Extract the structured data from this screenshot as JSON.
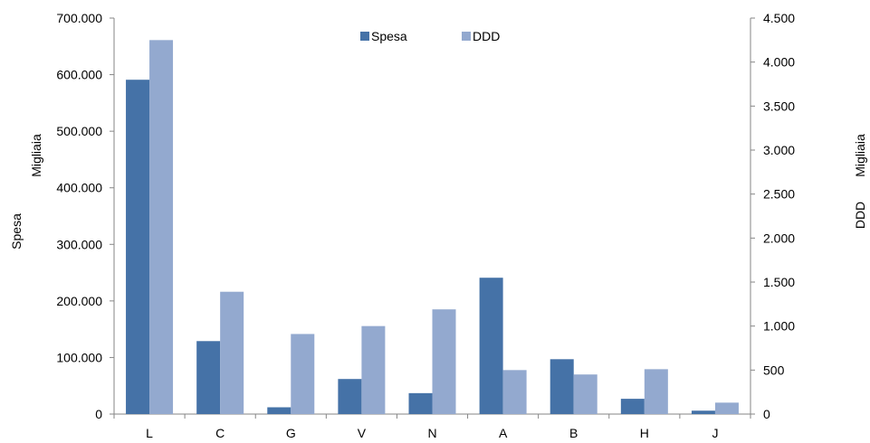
{
  "chart_data": {
    "type": "bar",
    "categories": [
      "L",
      "C",
      "G",
      "V",
      "N",
      "A",
      "B",
      "H",
      "J"
    ],
    "series": [
      {
        "name": "Spesa",
        "axis": "left",
        "color": "#4572a7",
        "values": [
          591000,
          129000,
          12000,
          62000,
          37000,
          241000,
          97000,
          27000,
          6000
        ]
      },
      {
        "name": "DDD",
        "axis": "right",
        "color": "#93a9cf",
        "values": [
          4250,
          1390,
          910,
          1000,
          1190,
          500,
          450,
          510,
          130
        ]
      }
    ],
    "left_axis": {
      "label": "Spesa",
      "unit_label": "Migliaia",
      "ylim": [
        0,
        700000
      ],
      "ticks": [
        0,
        100000,
        200000,
        300000,
        400000,
        500000,
        600000,
        700000
      ],
      "tick_labels": [
        "0",
        "100.000",
        "200.000",
        "300.000",
        "400.000",
        "500.000",
        "600.000",
        "700.000"
      ]
    },
    "right_axis": {
      "label": "DDD",
      "unit_label": "Migliaia",
      "ylim": [
        0,
        4500
      ],
      "ticks": [
        0,
        500,
        1000,
        1500,
        2000,
        2500,
        3000,
        3500,
        4000,
        4500
      ],
      "tick_labels": [
        "0",
        "500",
        "1.000",
        "1.500",
        "2.000",
        "2.500",
        "3.000",
        "3.500",
        "4.000",
        "4.500"
      ]
    },
    "legend": {
      "placement": "top-center"
    },
    "grid": false,
    "axis_color": "#868686"
  }
}
